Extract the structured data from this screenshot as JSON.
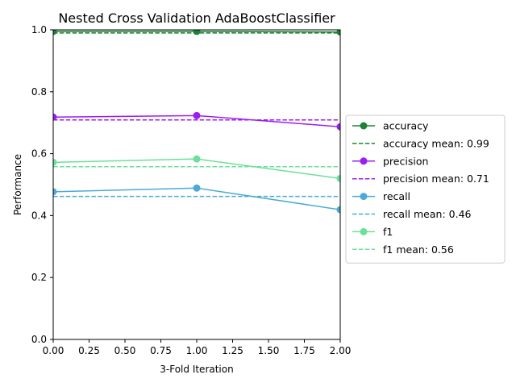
{
  "chart_data": {
    "type": "line",
    "title": "Nested Cross Validation AdaBoostClassifier",
    "xlabel": "3-Fold Iteration",
    "ylabel": "Performance",
    "xlim": [
      0,
      2
    ],
    "ylim": [
      0,
      1
    ],
    "xticks": [
      "0.00",
      "0.25",
      "0.50",
      "0.75",
      "1.00",
      "1.25",
      "1.50",
      "1.75",
      "2.00"
    ],
    "yticks": [
      "0.0",
      "0.2",
      "0.4",
      "0.6",
      "0.8",
      "1.0"
    ],
    "x": [
      0,
      1,
      2
    ],
    "grid": false,
    "legend_position": "center-right-outside",
    "series": [
      {
        "name": "accuracy",
        "color": "#1e8236",
        "values": [
          0.995,
          0.995,
          0.993
        ],
        "mean": 0.99,
        "mean_label": "accuracy mean: 0.99"
      },
      {
        "name": "precision",
        "color": "#9b1ef0",
        "values": [
          0.718,
          0.723,
          0.687
        ],
        "mean": 0.709,
        "mean_label": "precision mean: 0.71"
      },
      {
        "name": "recall",
        "color": "#4baad6",
        "values": [
          0.477,
          0.489,
          0.419
        ],
        "mean": 0.462,
        "mean_label": "recall mean: 0.46"
      },
      {
        "name": "f1",
        "color": "#6be09a",
        "values": [
          0.572,
          0.583,
          0.52
        ],
        "mean": 0.558,
        "mean_label": "f1 mean: 0.56"
      }
    ]
  }
}
